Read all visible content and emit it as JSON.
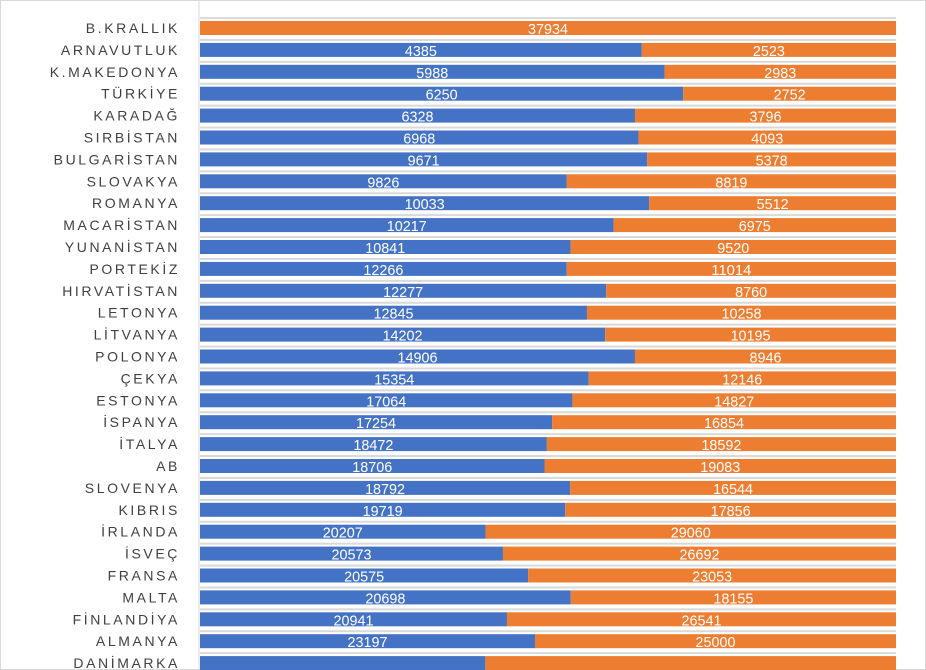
{
  "chart_data": {
    "type": "bar",
    "orientation": "horizontal",
    "stacked": "100%",
    "title": "",
    "xlabel": "",
    "ylabel": "",
    "categories": [
      "B.KRALLIK",
      "ARNAVUTLUK",
      "K.MAKEDONYA",
      "TÜRKİYE",
      "KARADAĞ",
      "SIRBİSTAN",
      "BULGARİSTAN",
      "SLOVAKYA",
      "ROMANYA",
      "MACARİSTAN",
      "YUNANİSTAN",
      "PORTEKİZ",
      "HIRVATİSTAN",
      "LETONYA",
      "LİTVANYA",
      "POLONYA",
      "ÇEKYA",
      "ESTONYA",
      "İSPANYA",
      "İTALYA",
      "AB",
      "SLOVENYA",
      "KIBRIS",
      "İRLANDA",
      "İSVEÇ",
      "FRANSA",
      "MALTA",
      "FİNLANDİYA",
      "ALMANYA",
      "DANİMARKA"
    ],
    "series": [
      {
        "name": "series1",
        "color": "#4472C4",
        "values": [
          0,
          4385,
          5988,
          6250,
          6328,
          6968,
          9671,
          9826,
          10033,
          10217,
          10841,
          12266,
          12277,
          12845,
          14202,
          14906,
          15354,
          17064,
          17254,
          18472,
          18706,
          18792,
          19719,
          20207,
          20573,
          20575,
          20698,
          20941,
          23197,
          null
        ],
        "share_if_unlabeled": [
          null,
          null,
          null,
          null,
          null,
          null,
          null,
          null,
          null,
          null,
          null,
          null,
          null,
          null,
          null,
          null,
          null,
          null,
          null,
          null,
          null,
          null,
          null,
          null,
          null,
          null,
          null,
          null,
          null,
          0.41
        ]
      },
      {
        "name": "series2",
        "color": "#ED7D31",
        "values": [
          37934,
          2523,
          2983,
          2752,
          3796,
          4093,
          5378,
          8819,
          5512,
          6975,
          9520,
          11014,
          8760,
          10258,
          10195,
          8946,
          12146,
          14827,
          16854,
          18592,
          19083,
          16544,
          17856,
          29060,
          26692,
          23053,
          18155,
          26541,
          25000,
          null
        ]
      }
    ],
    "grid": true,
    "legend": "none"
  }
}
